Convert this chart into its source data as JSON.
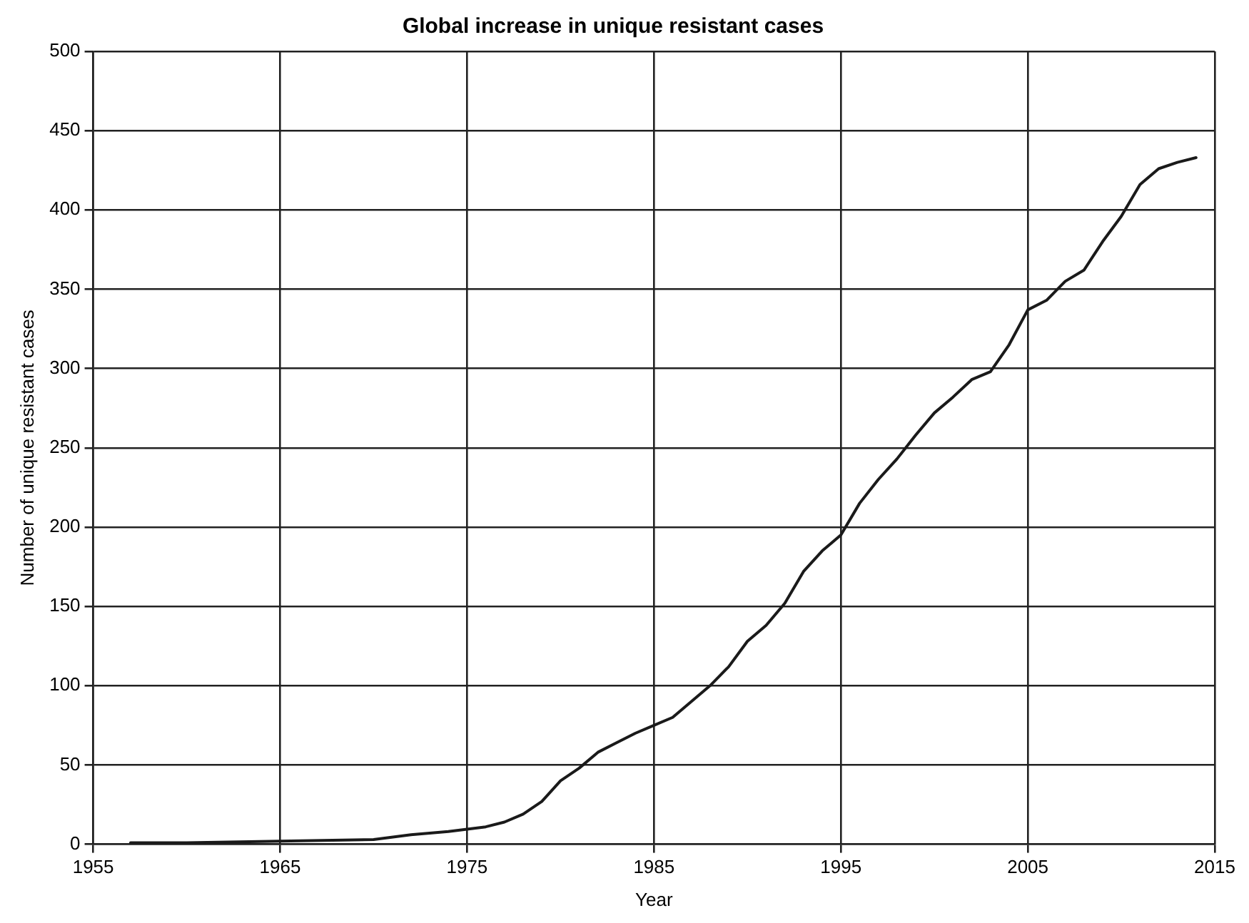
{
  "chart_data": {
    "type": "line",
    "title": "Global increase in unique resistant cases",
    "xlabel": "Year",
    "ylabel": "Number of unique resistant cases",
    "x": [
      1957,
      1960,
      1965,
      1970,
      1972,
      1974,
      1976,
      1977,
      1978,
      1979,
      1980,
      1981,
      1982,
      1983,
      1984,
      1985,
      1986,
      1987,
      1988,
      1989,
      1990,
      1991,
      1992,
      1993,
      1994,
      1995,
      1996,
      1997,
      1998,
      1999,
      2000,
      2001,
      2002,
      2003,
      2004,
      2005,
      2006,
      2007,
      2008,
      2009,
      2010,
      2011,
      2012,
      2013,
      2014
    ],
    "series": [
      {
        "color": "#1a1a1a",
        "values": [
          1,
          1,
          2,
          3,
          6,
          8,
          11,
          14,
          19,
          27,
          40,
          48,
          58,
          64,
          70,
          75,
          80,
          90,
          100,
          112,
          128,
          138,
          152,
          172,
          185,
          195,
          215,
          230,
          243,
          258,
          272,
          282,
          293,
          298,
          315,
          337,
          343,
          355,
          362,
          380,
          396,
          416,
          426,
          430,
          433
        ]
      }
    ],
    "xlim": [
      1955,
      2015
    ],
    "xticks": [
      1955,
      1965,
      1975,
      1985,
      1995,
      2005,
      2015
    ],
    "ylim": [
      0,
      500
    ],
    "yticks": [
      0,
      50,
      100,
      150,
      200,
      250,
      300,
      350,
      400,
      450,
      500
    ],
    "grid": true,
    "legend": false,
    "marker": "none",
    "line_style": "solid"
  }
}
